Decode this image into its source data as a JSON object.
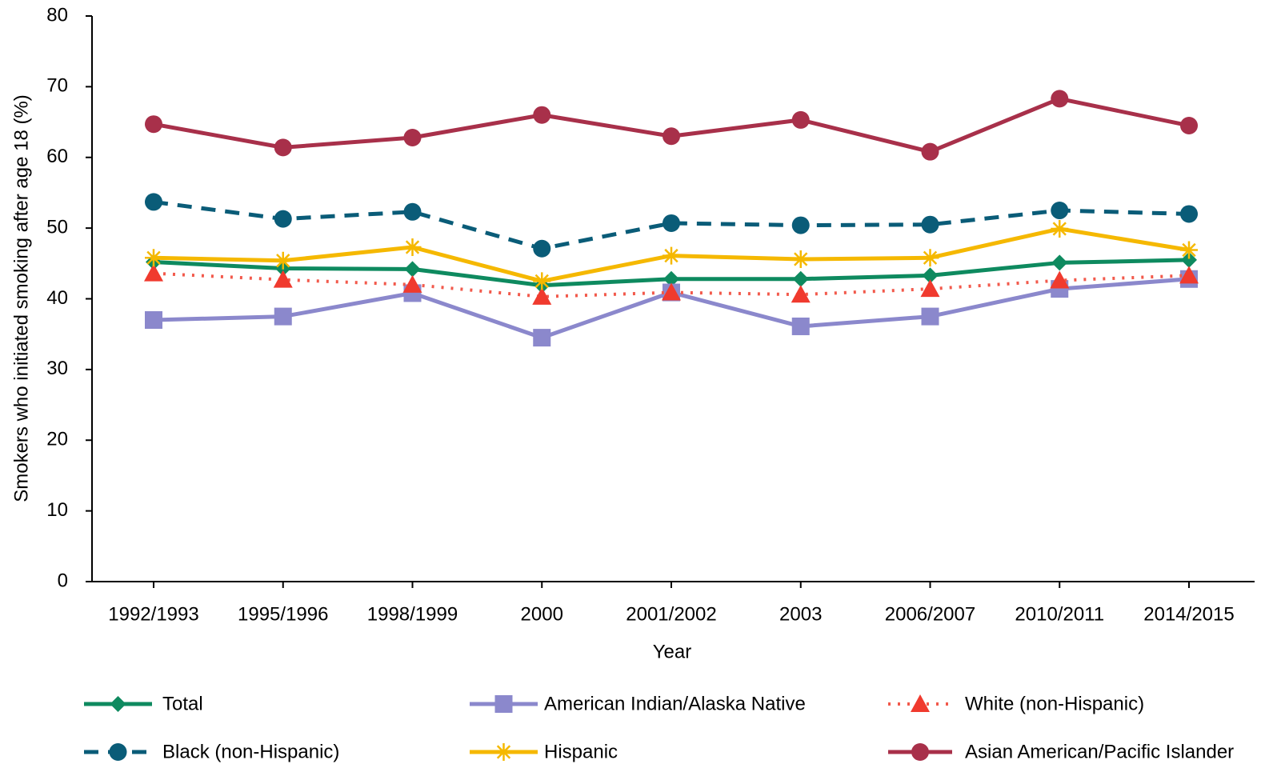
{
  "chart_data": {
    "type": "line",
    "y_label": "Smokers who initiated smoking after age 18 (%)",
    "x_label": "Year",
    "categories": [
      "1992/1993",
      "1995/1996",
      "1998/1999",
      "2000",
      "2001/2002",
      "2003",
      "2006/2007",
      "2010/2011",
      "2014/2015"
    ],
    "ylim": [
      0,
      80
    ],
    "yticks": [
      0,
      10,
      20,
      30,
      40,
      50,
      60,
      70,
      80
    ],
    "grid": false,
    "legend": "bottom",
    "series": [
      {
        "name": "Total",
        "color": "#0e8a5f",
        "marker": "diamond",
        "line_style": "solid",
        "values": [
          45.2,
          44.3,
          44.2,
          41.9,
          42.8,
          42.8,
          43.3,
          45.1,
          45.5
        ]
      },
      {
        "name": "American Indian/Alaska Native",
        "color": "#8b88cc",
        "marker": "square",
        "line_style": "solid",
        "values": [
          37.0,
          37.5,
          40.8,
          34.5,
          40.9,
          36.1,
          37.5,
          41.4,
          42.8
        ]
      },
      {
        "name": "White (non-Hispanic)",
        "color": "#f2594b",
        "marker": "triangle",
        "line_style": "dotted",
        "values": [
          43.6,
          42.7,
          42.0,
          40.3,
          40.9,
          40.6,
          41.4,
          42.6,
          43.3
        ]
      },
      {
        "name": "Black (non-Hispanic)",
        "color": "#0a5c78",
        "marker": "circle",
        "line_style": "dashed",
        "values": [
          53.7,
          51.3,
          52.3,
          47.1,
          50.7,
          50.4,
          50.5,
          52.5,
          52.0
        ]
      },
      {
        "name": "Hispanic",
        "color": "#f5b800",
        "marker": "star",
        "line_style": "solid",
        "values": [
          45.8,
          45.4,
          47.3,
          42.5,
          46.1,
          45.6,
          45.8,
          49.9,
          46.9
        ]
      },
      {
        "name": "Asian American/Pacific Islander",
        "color": "#a8304a",
        "marker": "circle",
        "line_style": "solid",
        "values": [
          64.7,
          61.4,
          62.8,
          66.0,
          63.0,
          65.3,
          60.8,
          68.3,
          64.5
        ]
      }
    ]
  }
}
